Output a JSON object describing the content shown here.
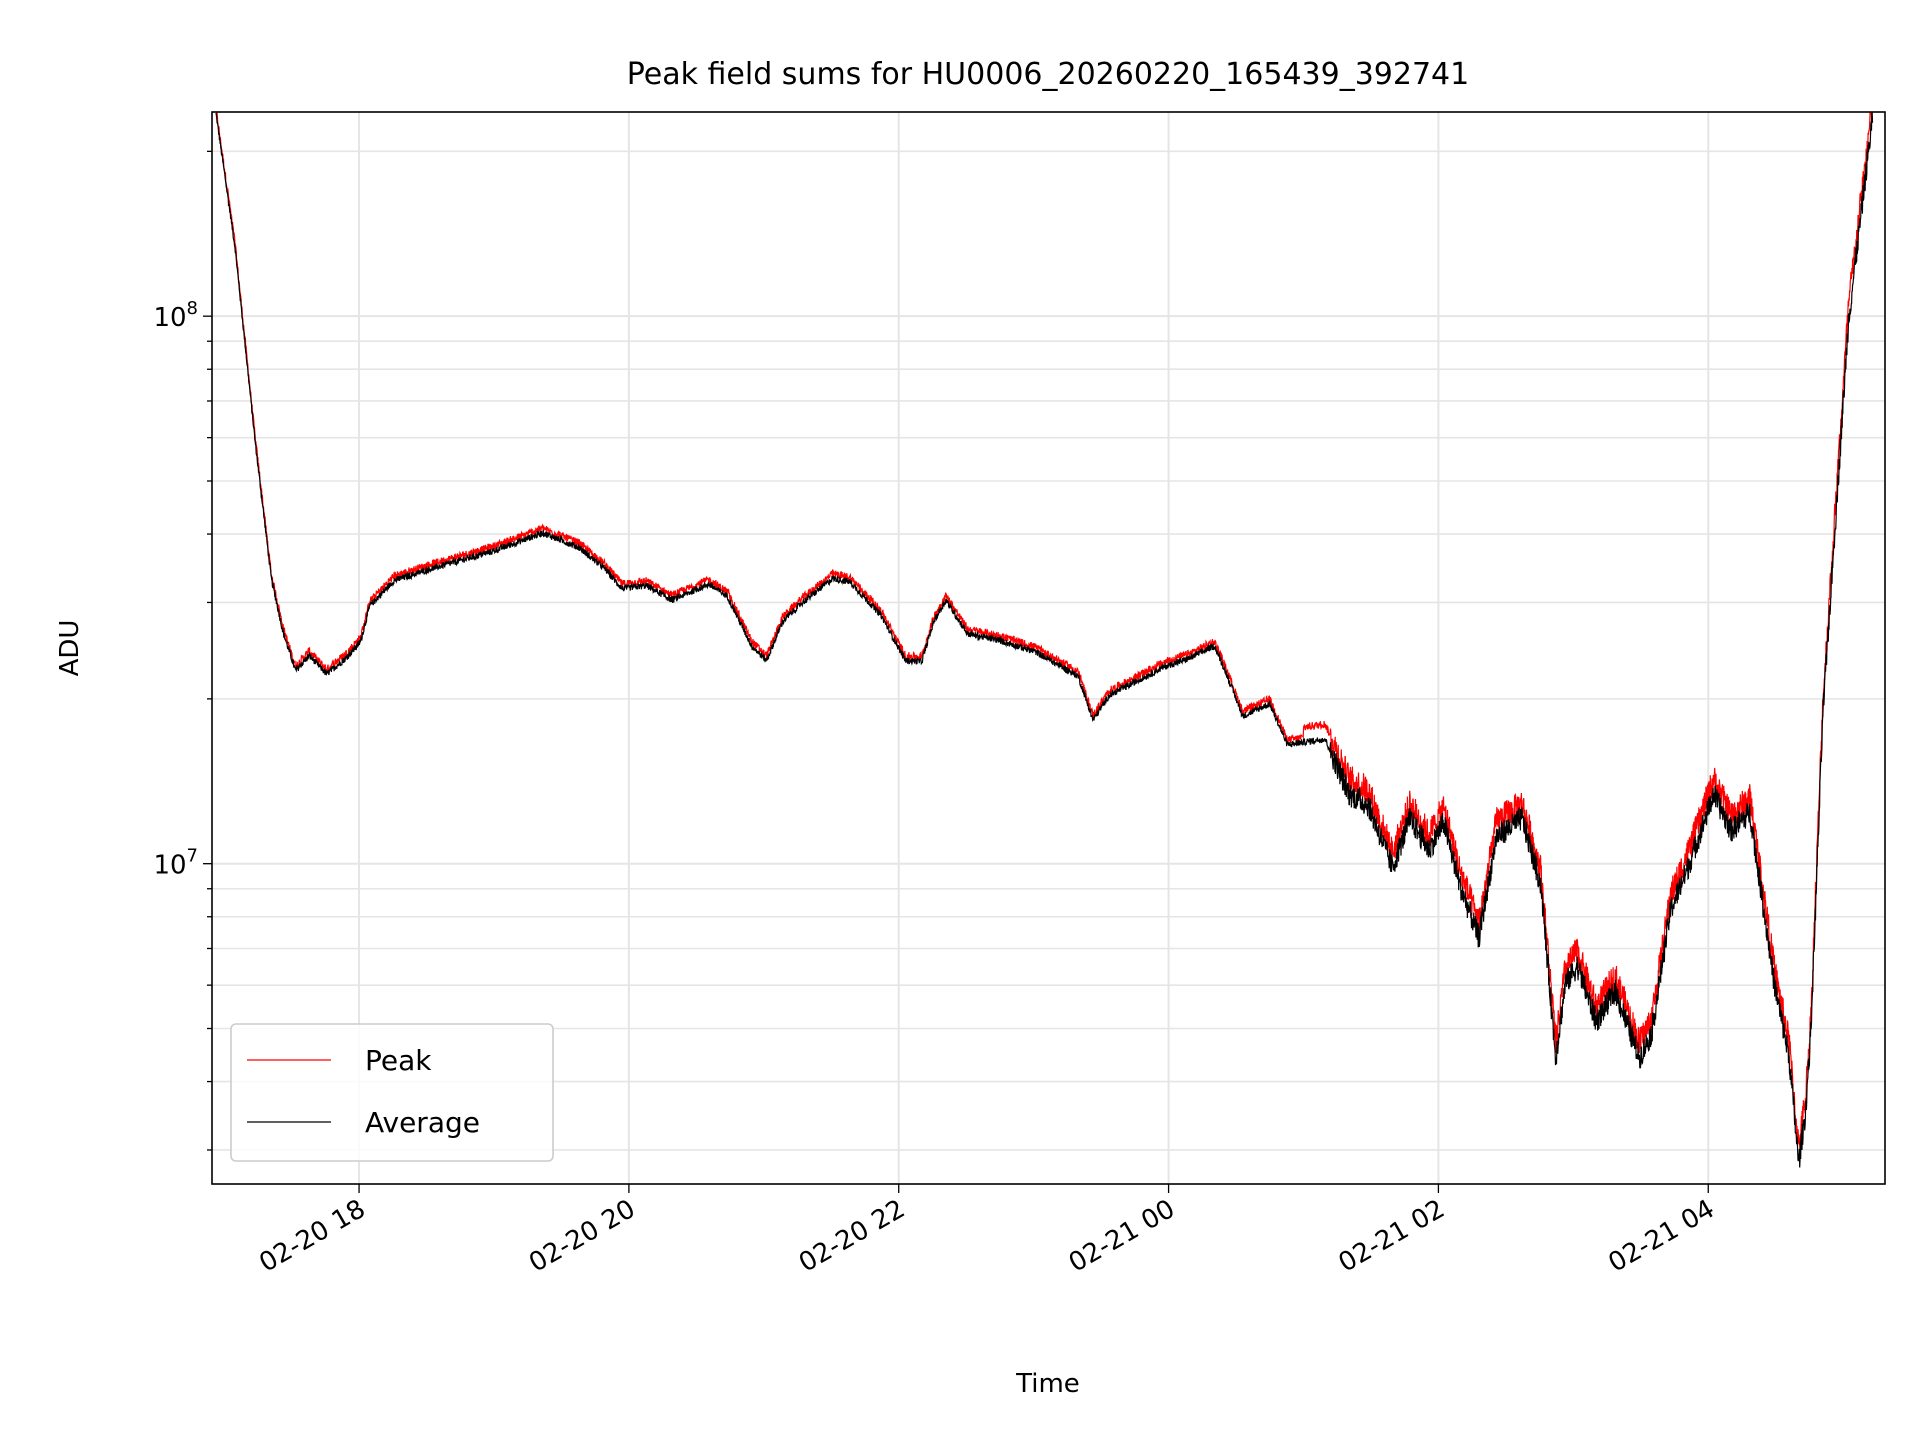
{
  "chart_data": {
    "type": "line",
    "title": "Peak field sums for HU0006_20260220_165439_392741",
    "xlabel": "Time",
    "ylabel": "ADU",
    "yscale": "log",
    "x_unit": "hours since 02-20 00:00",
    "xlim": [
      16.91,
      29.31
    ],
    "ylim": [
      2600000,
      236000000
    ],
    "grid": "on (x major, y major and minor)",
    "legend_placement": "lower-left",
    "x_ticks": [
      18,
      20,
      22,
      24,
      26,
      28
    ],
    "x_tick_labels": [
      "02-20 18",
      "02-20 20",
      "02-20 22",
      "02-21 00",
      "02-21 02",
      "02-21 04"
    ],
    "y_ticks": [
      10000000,
      100000000
    ],
    "y_tick_labels": [
      {
        "base": "10",
        "exp": "7"
      },
      {
        "base": "10",
        "exp": "8"
      }
    ],
    "series": [
      {
        "name": "Peak",
        "color": "#ff0000",
        "ratio_to_average": 1.04
      },
      {
        "name": "Average",
        "color": "#000000",
        "x": [
          16.94,
          17.08,
          17.23,
          17.35,
          17.44,
          17.53,
          17.63,
          17.76,
          17.9,
          18.01,
          18.08,
          18.26,
          18.54,
          18.99,
          19.36,
          19.63,
          19.82,
          19.95,
          20.13,
          20.32,
          20.59,
          20.73,
          20.91,
          21.02,
          21.14,
          21.28,
          21.51,
          21.64,
          21.87,
          22.05,
          22.17,
          22.26,
          22.35,
          22.51,
          22.74,
          23.01,
          23.33,
          23.44,
          23.56,
          23.74,
          23.97,
          24.15,
          24.34,
          24.43,
          24.55,
          24.75,
          24.88,
          25.16,
          25.34,
          25.48,
          25.66,
          25.79,
          25.93,
          26.04,
          26.16,
          26.3,
          26.43,
          26.62,
          26.76,
          26.87,
          26.94,
          27.03,
          27.17,
          27.31,
          27.49,
          27.58,
          27.72,
          27.85,
          28.04,
          28.17,
          28.31,
          28.49,
          28.6,
          28.67,
          28.72,
          28.76,
          28.85,
          29.04,
          29.22
        ],
        "values": [
          234000000,
          134000000,
          58900000,
          33100000,
          26300000,
          22500000,
          24000000,
          22200000,
          23700000,
          25400000,
          29600000,
          32900000,
          34600000,
          37200000,
          40200000,
          37800000,
          34600000,
          31800000,
          32200000,
          30300000,
          32400000,
          30800000,
          25000000,
          23500000,
          27700000,
          29900000,
          33200000,
          32700000,
          28400000,
          23500000,
          23400000,
          27700000,
          30300000,
          26300000,
          25600000,
          24400000,
          22000000,
          18300000,
          20300000,
          21400000,
          22900000,
          23700000,
          25000000,
          22200000,
          18600000,
          19600000,
          16500000,
          16900000,
          13400000,
          12800000,
          9840000,
          12100000,
          10600000,
          11900000,
          9120000,
          7330000,
          11200000,
          12100000,
          9120000,
          4420000,
          6030000,
          6500000,
          5150000,
          5860000,
          4420000,
          4900000,
          8220000,
          9840000,
          13400000,
          11500000,
          12400000,
          6030000,
          4420000,
          2840000,
          3500000,
          4900000,
          18800000,
          98400000,
          234000000
        ]
      }
    ]
  }
}
